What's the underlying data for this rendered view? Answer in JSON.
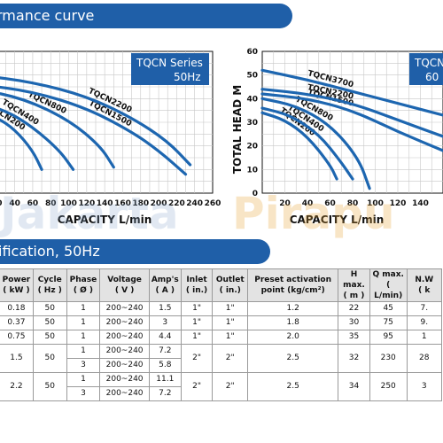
{
  "banners": {
    "top": "rmance curve",
    "middle": "ification, 50Hz"
  },
  "watermark": {
    "part1": "Jakarta",
    "part2": "Pirapu"
  },
  "colors": {
    "banner": "#1f5fa8",
    "curve": "#1d66b0",
    "header_bg": "#e3e3e3"
  },
  "chart_data": [
    {
      "type": "line",
      "legend": [
        "TQCN Series",
        "50Hz"
      ],
      "xlabel": "CAPACITY L/min",
      "ylabel": "",
      "xticks": [
        20,
        40,
        60,
        80,
        100,
        120,
        140,
        160,
        180,
        200,
        220,
        240,
        260
      ],
      "xlim": [
        0,
        260
      ],
      "ylim": [
        0,
        60
      ],
      "grid": true,
      "series": [
        {
          "name": "TQCN200",
          "x": [
            0,
            20,
            40,
            60,
            70
          ],
          "y": [
            34,
            32,
            27,
            18,
            10
          ]
        },
        {
          "name": "TQCN400",
          "x": [
            0,
            30,
            60,
            90,
            105
          ],
          "y": [
            38,
            35,
            28,
            18,
            10
          ]
        },
        {
          "name": "TQCN800",
          "x": [
            0,
            50,
            100,
            135,
            150
          ],
          "y": [
            44,
            40,
            31,
            20,
            11
          ]
        },
        {
          "name": "TQCN1500",
          "x": [
            0,
            60,
            120,
            170,
            200,
            230
          ],
          "y": [
            46,
            43,
            36,
            26,
            18,
            8
          ]
        },
        {
          "name": "TQCN2200",
          "x": [
            0,
            60,
            120,
            170,
            210,
            235
          ],
          "y": [
            50,
            47,
            41,
            32,
            22,
            12
          ]
        }
      ]
    },
    {
      "type": "line",
      "legend": [
        "TQCN",
        "60"
      ],
      "xlabel": "CAPACITY L/min",
      "ylabel": "TOTAL HEAD M",
      "xticks": [
        20,
        40,
        60,
        80,
        100,
        120,
        140
      ],
      "yticks": [
        0,
        10,
        20,
        30,
        40,
        50,
        60
      ],
      "xlim": [
        0,
        160
      ],
      "ylim": [
        0,
        60
      ],
      "grid": true,
      "series": [
        {
          "name": "TQCN200",
          "x": [
            0,
            20,
            40,
            60,
            66
          ],
          "y": [
            34,
            31,
            24,
            12,
            6
          ]
        },
        {
          "name": "TQCN400",
          "x": [
            0,
            25,
            50,
            70,
            80
          ],
          "y": [
            36,
            33,
            25,
            13,
            6
          ]
        },
        {
          "name": "TQCN800",
          "x": [
            0,
            30,
            60,
            85,
            95
          ],
          "y": [
            40,
            37,
            29,
            15,
            2
          ]
        },
        {
          "name": "TQCN1500",
          "x": [
            0,
            40,
            80,
            120,
            160
          ],
          "y": [
            42,
            40,
            35,
            26,
            18
          ]
        },
        {
          "name": "TQCN2200",
          "x": [
            0,
            40,
            80,
            120,
            160
          ],
          "y": [
            44,
            42,
            38,
            31,
            24
          ]
        },
        {
          "name": "TQCN3700",
          "x": [
            0,
            40,
            80,
            120,
            160
          ],
          "y": [
            52,
            48,
            43,
            38,
            33
          ]
        }
      ]
    }
  ],
  "table": {
    "headers": [
      "Power",
      "Cycle",
      "Phase",
      "Voltage",
      "Amp's",
      "Inlet",
      "Outlet",
      "Preset activation",
      "H max.",
      "Q max.",
      "N.W"
    ],
    "subheaders": [
      "( kW )",
      "( Hz )",
      "( Ø )",
      "( V )",
      "( A )",
      "( in.)",
      "( in.)",
      "point (kg/cm²)",
      "( m )",
      "( L/min)",
      "( k"
    ],
    "rows": [
      {
        "power": "0.18",
        "cycle": "50",
        "phases": [
          "1"
        ],
        "voltages": [
          "200~240"
        ],
        "amps": [
          "1.5"
        ],
        "inlet": "1\"",
        "outlet": "1\"",
        "preset": "1.2",
        "hmax": "22",
        "qmax": "45",
        "nw": "7."
      },
      {
        "power": "0.37",
        "cycle": "50",
        "phases": [
          "1"
        ],
        "voltages": [
          "200~240"
        ],
        "amps": [
          "3"
        ],
        "inlet": "1\"",
        "outlet": "1\"",
        "preset": "1.8",
        "hmax": "30",
        "qmax": "75",
        "nw": "9."
      },
      {
        "power": "0.75",
        "cycle": "50",
        "phases": [
          "1"
        ],
        "voltages": [
          "200~240"
        ],
        "amps": [
          "4.4"
        ],
        "inlet": "1\"",
        "outlet": "1\"",
        "preset": "2.0",
        "hmax": "35",
        "qmax": "95",
        "nw": "1"
      },
      {
        "power": "1.5",
        "cycle": "50",
        "phases": [
          "1",
          "3"
        ],
        "voltages": [
          "200~240",
          "200~240"
        ],
        "amps": [
          "7.2",
          "5.8"
        ],
        "inlet": "2\"",
        "outlet": "2\"",
        "preset": "2.5",
        "hmax": "32",
        "qmax": "230",
        "nw": "28"
      },
      {
        "power": "2.2",
        "cycle": "50",
        "phases": [
          "1",
          "3"
        ],
        "voltages": [
          "200~240",
          "200~240"
        ],
        "amps": [
          "11.1",
          "7.2"
        ],
        "inlet": "2\"",
        "outlet": "2\"",
        "preset": "2.5",
        "hmax": "34",
        "qmax": "250",
        "nw": "3"
      }
    ]
  }
}
